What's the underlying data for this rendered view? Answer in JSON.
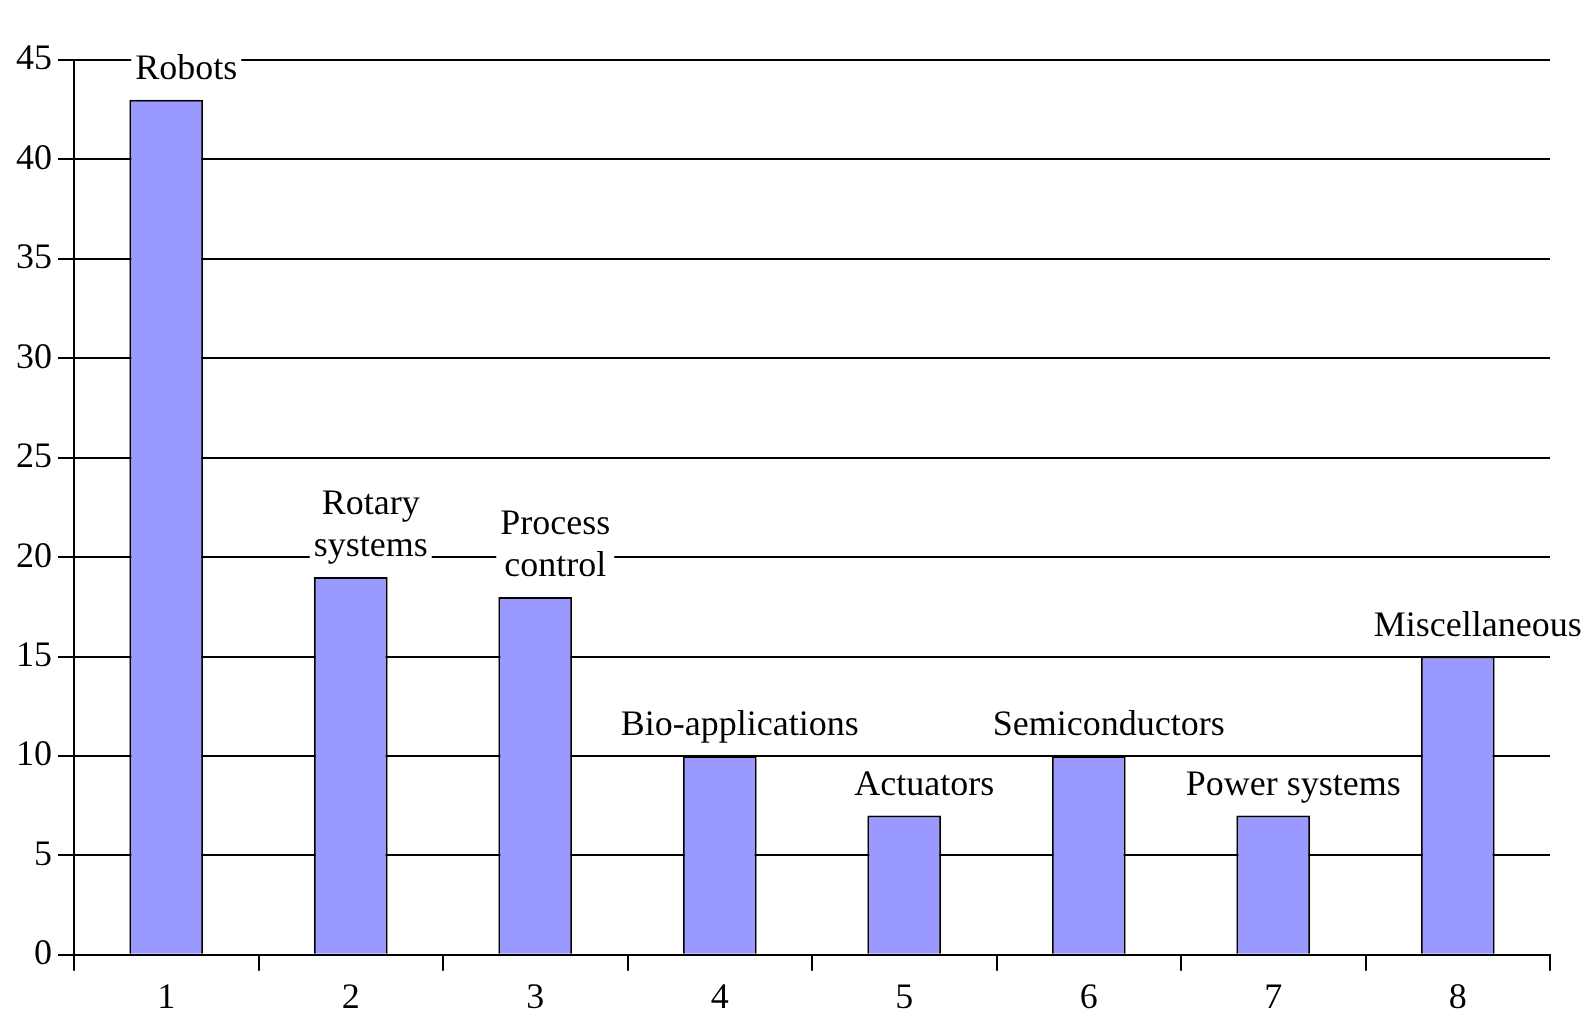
{
  "chart_data": {
    "type": "bar",
    "categories": [
      "1",
      "2",
      "3",
      "4",
      "5",
      "6",
      "7",
      "8"
    ],
    "values": [
      43,
      19,
      18,
      10,
      7,
      10,
      7,
      15
    ],
    "color": "#9999ff",
    "ylim": [
      0,
      45
    ],
    "yticks": [
      0,
      5,
      10,
      15,
      20,
      25,
      30,
      35,
      40,
      45
    ],
    "grid": "y",
    "legend": false,
    "annotations": [
      {
        "text": "Robots",
        "x": "1",
        "y": 43
      },
      {
        "text": "Rotary\nsystems",
        "x": "2",
        "y": 19
      },
      {
        "text": "Process\ncontrol",
        "x": "3",
        "y": 18
      },
      {
        "text": "Bio-applications",
        "x": "4",
        "y": 10
      },
      {
        "text": "Actuators",
        "x": "5",
        "y": 7
      },
      {
        "text": "Semiconductors",
        "x": "6",
        "y": 10
      },
      {
        "text": "Power systems",
        "x": "7",
        "y": 7
      },
      {
        "text": "Miscellaneous",
        "x": "8",
        "y": 15
      }
    ]
  }
}
